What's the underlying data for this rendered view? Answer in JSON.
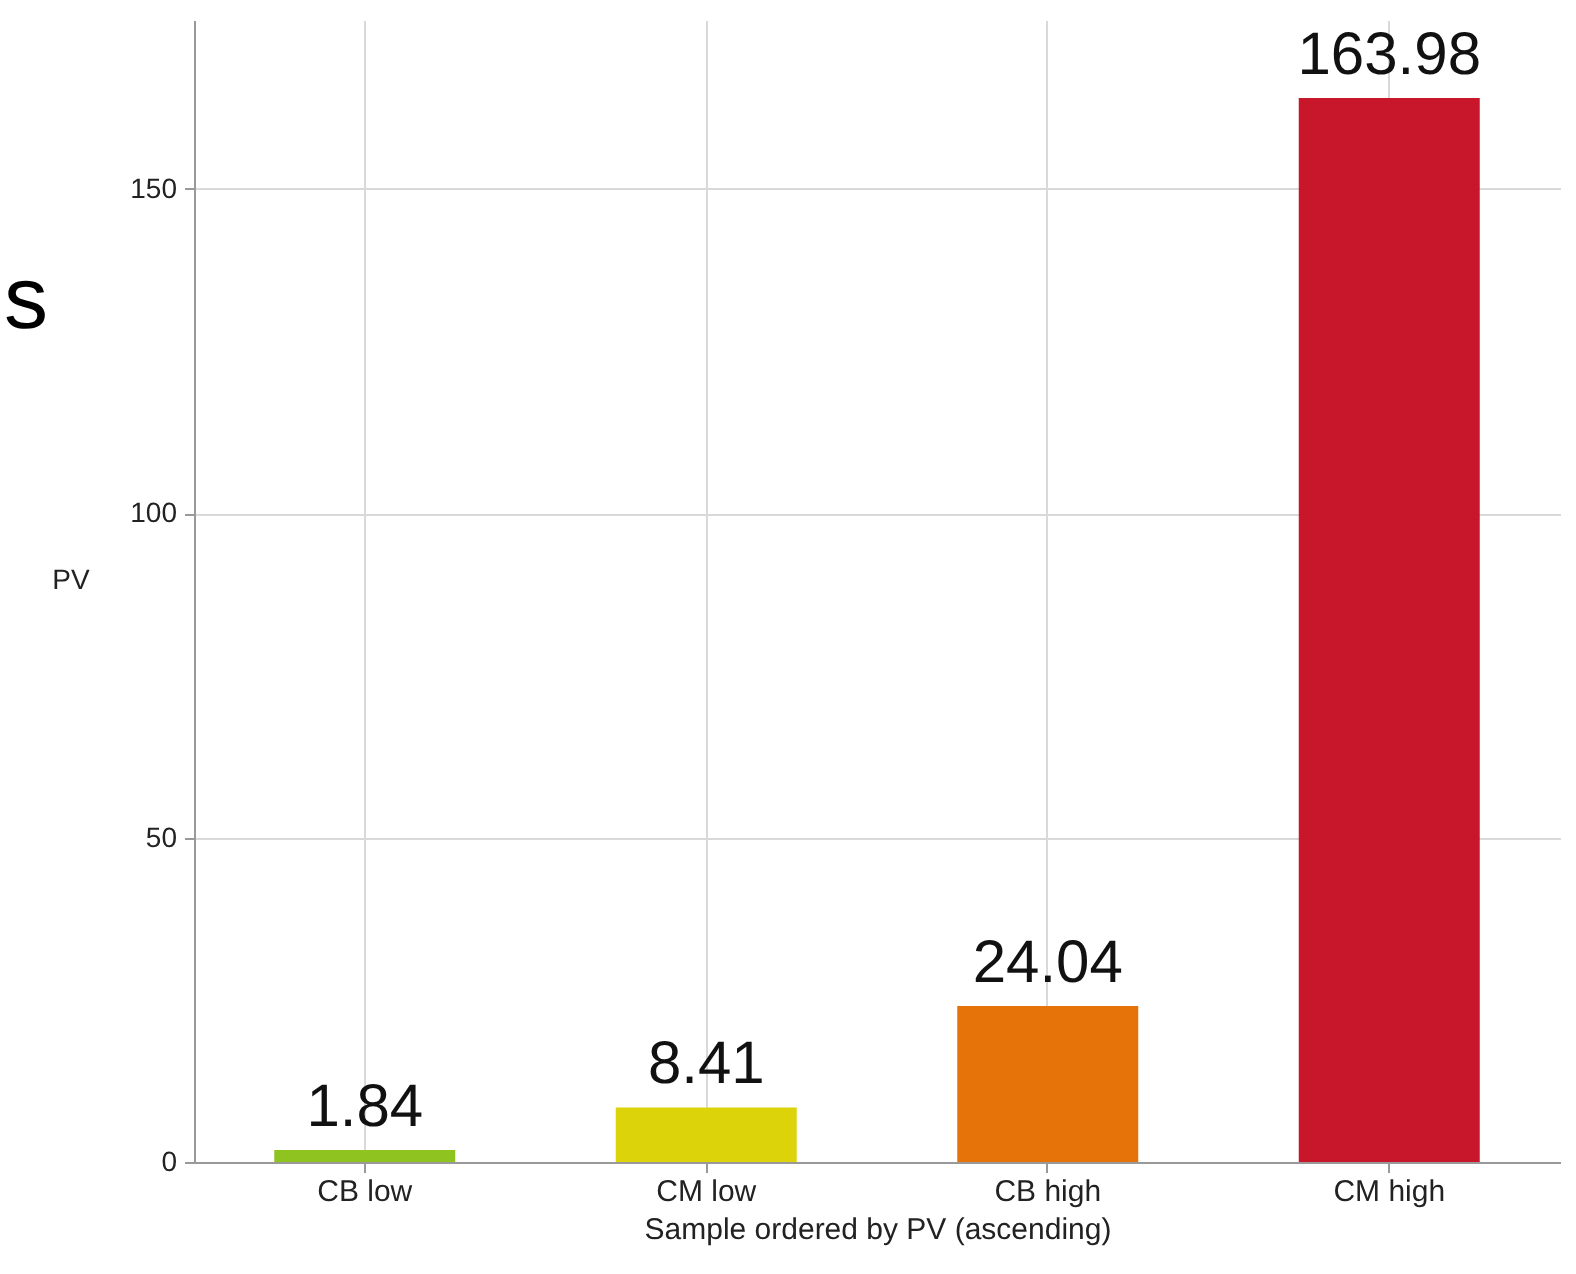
{
  "chart_data": {
    "type": "bar",
    "xlabel": "Sample ordered by PV (ascending)",
    "ylabel": "PV",
    "categories": [
      "CB low",
      "CM low",
      "CB high",
      "CM high"
    ],
    "values": [
      1.84,
      8.41,
      24.04,
      163.98
    ],
    "colors": [
      "#8fc31f",
      "#dcd30b",
      "#e5730a",
      "#c8172b"
    ],
    "ylim": [
      0,
      176
    ],
    "yticks": [
      0,
      50,
      100,
      150
    ],
    "grid": true,
    "data_labels": true,
    "annotations": [
      "s"
    ]
  }
}
